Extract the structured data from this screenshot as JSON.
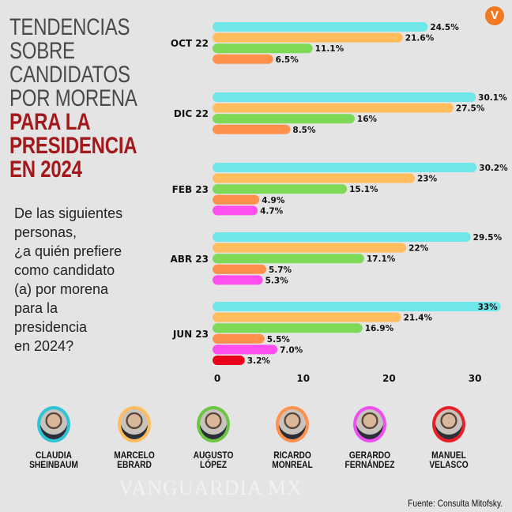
{
  "logo": {
    "text": "V",
    "color": "#f07a22"
  },
  "title": {
    "lines_gray": [
      "TENDENCIAS",
      "SOBRE",
      "CANDIDATOS",
      "POR MORENA"
    ],
    "lines_red": [
      "PARA LA",
      "PRESIDENCIA",
      "EN 2024"
    ]
  },
  "question": {
    "lines": [
      "De las siguientes",
      "personas,",
      "¿a quién prefiere",
      "como candidato",
      "(a) por morena",
      "para la",
      "presidencia",
      "en 2024?"
    ]
  },
  "chart_data": {
    "type": "bar",
    "orientation": "horizontal",
    "xlim": [
      0,
      33
    ],
    "x_ticks": [
      0,
      10,
      20,
      30
    ],
    "grid": false,
    "categories": [
      "OCT 22",
      "DIC 22",
      "FEB 23",
      "ABR 23",
      "JUN 23"
    ],
    "series": [
      {
        "name": "CLAUDIA SHEINBAUM",
        "color": "#6ee6ea",
        "values": [
          24.5,
          30.1,
          30.2,
          29.5,
          33
        ],
        "labels": [
          "24.5%",
          "30.1%",
          "30.2%",
          "29.5%",
          "33%"
        ]
      },
      {
        "name": "MARCELO EBRARD",
        "color": "#ffbd5e",
        "values": [
          21.6,
          27.5,
          23,
          22,
          21.4
        ],
        "labels": [
          "21.6%",
          "27.5%",
          "23%",
          "22%",
          "21.4%"
        ]
      },
      {
        "name": "AUGUSTO LÓPEZ",
        "color": "#7ed957",
        "values": [
          11.1,
          16,
          15.1,
          17.1,
          16.9
        ],
        "labels": [
          "11.1%",
          "16%",
          "15.1%",
          "17.1%",
          "16.9%"
        ]
      },
      {
        "name": "RICARDO MONREAL",
        "color": "#ff914d",
        "values": [
          6.5,
          8.5,
          4.9,
          5.7,
          5.5
        ],
        "labels": [
          "6.5%",
          "8.5%",
          "4.9%",
          "5.7%",
          "5.5%"
        ]
      },
      {
        "name": "GERARDO FERNÁNDEZ",
        "color": "#ff4ef0",
        "values": [
          null,
          null,
          4.7,
          5.3,
          7.0
        ],
        "labels": [
          null,
          null,
          "4.7%",
          "5.3%",
          "7.0%"
        ]
      },
      {
        "name": "MANUEL VELASCO",
        "color": "#e8001c",
        "values": [
          null,
          null,
          null,
          null,
          3.2
        ],
        "labels": [
          null,
          null,
          null,
          null,
          "3.2%"
        ]
      }
    ]
  },
  "candidates": [
    {
      "first": "CLAUDIA",
      "last": "SHEINBAUM",
      "color": "#2ec4d6"
    },
    {
      "first": "MARCELO",
      "last": "EBRARD",
      "color": "#ffbd5e"
    },
    {
      "first": "AUGUSTO",
      "last": "LÓPEZ",
      "color": "#6cc644"
    },
    {
      "first": "RICARDO",
      "last": "MONREAL",
      "color": "#ff914d"
    },
    {
      "first": "GERARDO",
      "last": "FERNÁNDEZ",
      "color": "#ee4ef0"
    },
    {
      "first": "MANUEL",
      "last": "VELASCO",
      "color": "#e8202a"
    }
  ],
  "source": "Fuente: Consulta Mitofsky.",
  "watermark": "VANGUARDIA MX"
}
